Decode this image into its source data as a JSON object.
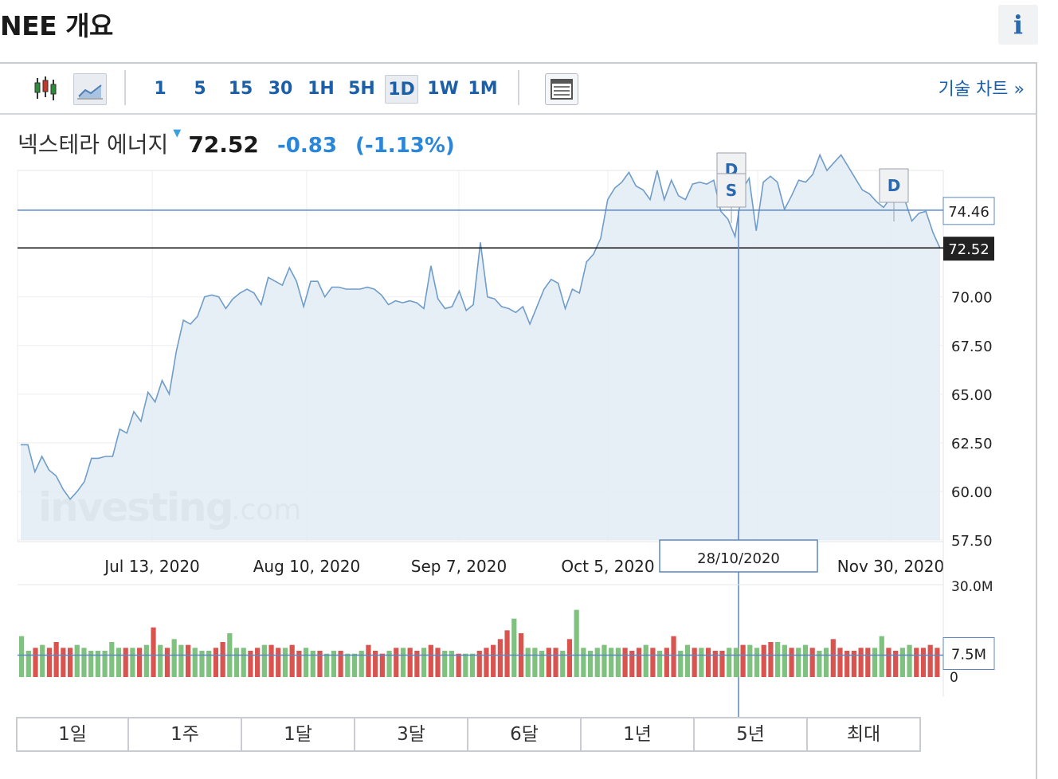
{
  "header": {
    "title": "NEE 개요",
    "info_icon": "info-icon",
    "info_label": "i"
  },
  "toolbar": {
    "chart_type_icons": [
      "candlestick-icon",
      "area-chart-icon"
    ],
    "intervals": [
      {
        "label": "1",
        "selected": false
      },
      {
        "label": "5",
        "selected": false
      },
      {
        "label": "15",
        "selected": false
      },
      {
        "label": "30",
        "selected": false
      },
      {
        "label": "1H",
        "selected": false
      },
      {
        "label": "5H",
        "selected": false
      },
      {
        "label": "1D",
        "selected": true
      },
      {
        "label": "1W",
        "selected": false
      },
      {
        "label": "1M",
        "selected": false
      }
    ],
    "table_icon": "table-icon",
    "technical_chart_link": "기술 차트 »"
  },
  "quote": {
    "name": "넥스테라 에너지",
    "direction_icon": "down-triangle-icon",
    "price": "72.52",
    "change": "-0.83",
    "change_pct": "(-1.13%)"
  },
  "watermark": {
    "brand": "investing",
    "suffix": ".com"
  },
  "chart_data": {
    "type": "area",
    "x_tick_labels": [
      "Jul 13, 2020",
      "Aug 10, 2020",
      "Sep 7, 2020",
      "Oct 5, 2020",
      "Nov 30, 2020"
    ],
    "y_tick_labels": [
      "70.00",
      "67.50",
      "65.00",
      "62.50",
      "60.00",
      "57.50"
    ],
    "ylim": [
      57.5,
      76.5
    ],
    "price_series": [
      62.4,
      62.4,
      61.0,
      61.8,
      61.1,
      60.8,
      60.1,
      59.6,
      60.0,
      60.5,
      61.7,
      61.7,
      61.8,
      61.8,
      63.2,
      63.0,
      64.1,
      63.6,
      65.1,
      64.6,
      65.7,
      65.0,
      67.2,
      68.8,
      68.6,
      69.0,
      70.0,
      70.1,
      70.0,
      69.4,
      69.9,
      70.2,
      70.4,
      70.2,
      69.6,
      71.0,
      70.8,
      70.6,
      71.5,
      70.8,
      69.5,
      70.8,
      70.8,
      70.0,
      70.5,
      70.5,
      70.4,
      70.4,
      70.4,
      70.5,
      70.4,
      70.1,
      69.6,
      69.8,
      69.7,
      69.8,
      69.7,
      69.4,
      71.6,
      69.9,
      69.4,
      69.5,
      70.3,
      69.3,
      69.6,
      72.8,
      70.0,
      69.9,
      69.5,
      69.4,
      69.2,
      69.5,
      68.6,
      69.5,
      70.4,
      70.9,
      70.7,
      69.4,
      70.4,
      70.2,
      71.8,
      72.2,
      73.0,
      75.0,
      75.6,
      75.9,
      76.4,
      75.7,
      75.5,
      75.0,
      76.5,
      75.0,
      76.0,
      75.2,
      75.0,
      75.8,
      75.9,
      75.8,
      76.0,
      74.4,
      74.0,
      73.1,
      75.5,
      76.1,
      73.4,
      75.9,
      76.2,
      75.9,
      74.5,
      75.2,
      76.0,
      75.9,
      76.3,
      77.3,
      76.5,
      76.9,
      77.3,
      76.7,
      76.1,
      75.5,
      75.3,
      74.9,
      74.6,
      75.1,
      75.9,
      75.0,
      73.9,
      74.3,
      74.4,
      73.3,
      72.5
    ],
    "volume_series": [
      10,
      9,
      10,
      11,
      10,
      12,
      10,
      10,
      11,
      10,
      9,
      9,
      9,
      12,
      10,
      10,
      10,
      10,
      11,
      12,
      11,
      10,
      10,
      11,
      11,
      10,
      9,
      9,
      10,
      12,
      11,
      10,
      10,
      9,
      10,
      11,
      11,
      10,
      10,
      11,
      9,
      10,
      9,
      9,
      8,
      9,
      9,
      8,
      8,
      9,
      8,
      9,
      8,
      9,
      10,
      10,
      10,
      9,
      10,
      11,
      10,
      9,
      9,
      8,
      8,
      8,
      9,
      10,
      11,
      13,
      12,
      11,
      10,
      10,
      10,
      9,
      10,
      10,
      9,
      9,
      10,
      10,
      9,
      10,
      11,
      10,
      10,
      10,
      9,
      10,
      11,
      10,
      9,
      10,
      10,
      9,
      11,
      10,
      10,
      10,
      9,
      9,
      10,
      10,
      11,
      11,
      10,
      11,
      12,
      10,
      11,
      10,
      10,
      11,
      10,
      9,
      10,
      9,
      10,
      9,
      9,
      10,
      10,
      10,
      11,
      10,
      9,
      10,
      11,
      10,
      10,
      11,
      10
    ],
    "volume_colors": "mixed-red-green",
    "volume_scale_labels": [
      "30.0M",
      "0"
    ],
    "price_markers": [
      {
        "label": "74.46",
        "style": "outlined"
      },
      {
        "label": "72.52",
        "style": "dark"
      }
    ],
    "volume_marker": "7.5M",
    "crosshair_date": "28/10/2020",
    "event_flags": [
      "D",
      "S",
      "D"
    ],
    "line_color": "#6f9cc9",
    "fill_color": "#e3ecf5",
    "up_volume_color": "#7fc27f",
    "down_volume_color": "#d9534f"
  },
  "range_buttons": [
    "1일",
    "1주",
    "1달",
    "3달",
    "6달",
    "1년",
    "5년",
    "최대"
  ]
}
